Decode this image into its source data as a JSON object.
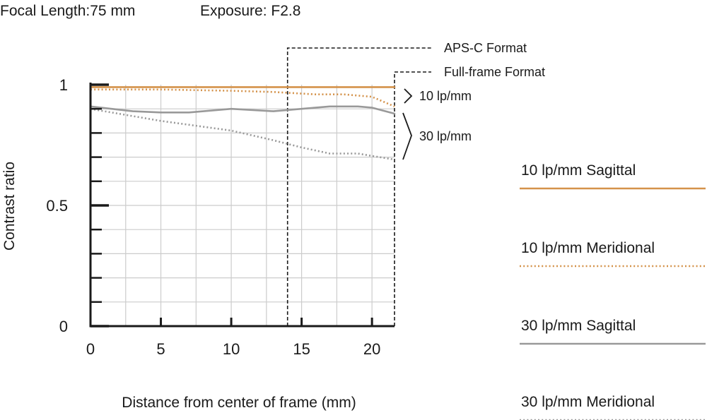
{
  "header": {
    "focal_length": "Focal Length:75 mm",
    "exposure": "Exposure: F2.8"
  },
  "chart_data": {
    "type": "line",
    "ylabel": "Contrast ratio",
    "xlabel": "Distance from center of frame (mm)",
    "xlim": [
      0,
      21.6
    ],
    "ylim": [
      0,
      1
    ],
    "x_ticks": [
      "0",
      "5",
      "10",
      "15",
      "20"
    ],
    "y_ticks": [
      "1",
      "0.5",
      "0"
    ],
    "grid": true,
    "legend_placement": "right",
    "markers": [
      {
        "label": "APS-C Format",
        "x": 14
      },
      {
        "label": "Full-frame Format",
        "x": 21.6
      }
    ],
    "annotations": [
      "10 lp/mm",
      "30 lp/mm"
    ],
    "colors": {
      "orange": "#d4924a",
      "gray": "#999999",
      "axis": "#1a1a1a",
      "grid": "#cccccc"
    },
    "series": [
      {
        "name": "10 lp/mm Sagittal",
        "color": "#d4924a",
        "style": "solid",
        "x": [
          0,
          5,
          10,
          15,
          20,
          21.6
        ],
        "values": [
          0.99,
          0.99,
          0.99,
          0.99,
          0.99,
          0.99
        ]
      },
      {
        "name": "10 lp/mm Meridional",
        "color": "#d4924a",
        "style": "dotted",
        "x": [
          0,
          5,
          10,
          13,
          16,
          18,
          20,
          21.6
        ],
        "values": [
          0.98,
          0.98,
          0.975,
          0.97,
          0.96,
          0.96,
          0.95,
          0.91
        ]
      },
      {
        "name": "30 lp/mm Sagittal",
        "color": "#999999",
        "style": "solid",
        "x": [
          0,
          3,
          5,
          7,
          10,
          13,
          15,
          17,
          19,
          20,
          21.6
        ],
        "values": [
          0.91,
          0.89,
          0.885,
          0.885,
          0.9,
          0.89,
          0.9,
          0.91,
          0.91,
          0.905,
          0.88
        ]
      },
      {
        "name": "30 lp/mm Meridional",
        "color": "#999999",
        "style": "dotted",
        "x": [
          0,
          5,
          10,
          13,
          15,
          17,
          19,
          20,
          21.6
        ],
        "values": [
          0.9,
          0.85,
          0.81,
          0.77,
          0.74,
          0.715,
          0.715,
          0.705,
          0.69
        ]
      }
    ]
  }
}
